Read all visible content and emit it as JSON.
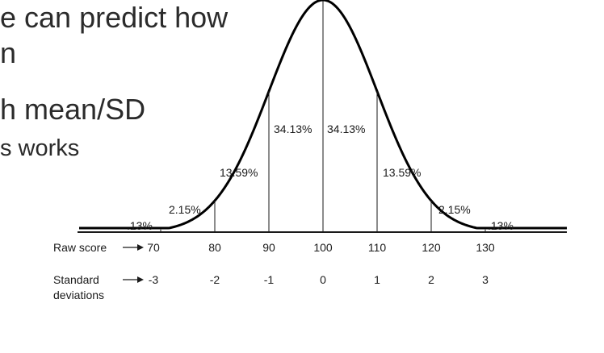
{
  "slide": {
    "lines": [
      "e can predict how",
      "n",
      "h mean/SD",
      "s works"
    ]
  },
  "diagram": {
    "percent_labels": [
      ".13%",
      "2.15%",
      "13.59%",
      "34.13%",
      "34.13%",
      "13.59%",
      "2.15%",
      ".13%"
    ],
    "raw_score": {
      "label": "Raw score",
      "values": [
        "70",
        "80",
        "90",
        "100",
        "110",
        "120",
        "130"
      ]
    },
    "standard_deviations": {
      "label_line1": "Standard",
      "label_line2": "deviations",
      "values": [
        "-3",
        "-2",
        "-1",
        "0",
        "1",
        "2",
        "3"
      ]
    },
    "colors": {
      "ink": "#1a1a1a",
      "slide_text": "#2b2b2b"
    }
  }
}
